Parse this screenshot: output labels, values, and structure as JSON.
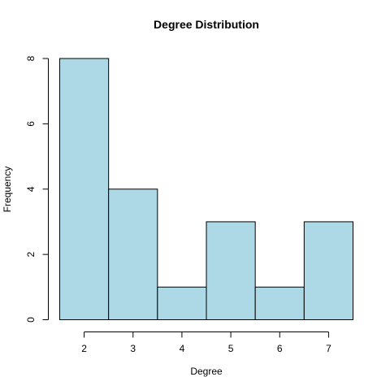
{
  "chart_data": {
    "type": "bar",
    "title": "Degree Distribution",
    "xlabel": "Degree",
    "ylabel": "Frequency",
    "bins": [
      {
        "from": 1.5,
        "to": 2.5,
        "count": 8
      },
      {
        "from": 2.5,
        "to": 3.5,
        "count": 4
      },
      {
        "from": 3.5,
        "to": 4.5,
        "count": 1
      },
      {
        "from": 4.5,
        "to": 5.5,
        "count": 3
      },
      {
        "from": 5.5,
        "to": 6.5,
        "count": 1
      },
      {
        "from": 6.5,
        "to": 7.5,
        "count": 3
      }
    ],
    "x_ticks": [
      2,
      3,
      4,
      5,
      6,
      7
    ],
    "y_ticks": [
      0,
      2,
      4,
      6,
      8
    ],
    "xlim": [
      1.5,
      7.5
    ],
    "ylim": [
      0,
      8
    ],
    "bar_color": "#add8e6",
    "grid": false,
    "legend": "none"
  }
}
